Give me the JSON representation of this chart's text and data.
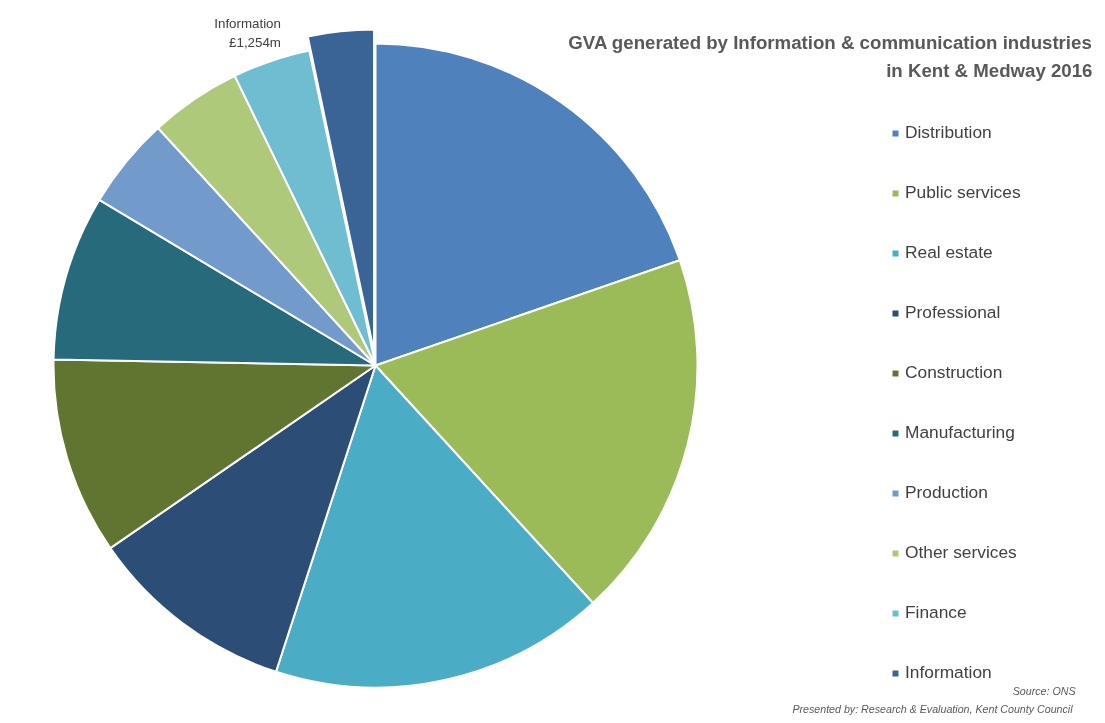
{
  "chart_data": {
    "type": "pie",
    "title": "GVA generated by Information & communication industries\nin Kent & Medway 2016",
    "categories": [
      "Distribution",
      "Public services",
      "Real estate",
      "Professional",
      "Construction",
      "Manufacturing",
      "Production",
      "Other services",
      "Finance",
      "Information"
    ],
    "values": [
      19.7,
      18.5,
      16.8,
      10.4,
      9.9,
      8.3,
      4.6,
      4.6,
      3.9,
      3.3
    ],
    "colors": [
      "#4f81bd",
      "#9bbb59",
      "#4bacc6",
      "#2c4d75",
      "#5f7530",
      "#276a7c",
      "#729aca",
      "#afc97a",
      "#6fbdd1",
      "#3a6496"
    ],
    "legend": "right",
    "annotations": [
      {
        "text": "Information\n£1,254m",
        "x": "Information"
      },
      "Source:  ONS",
      "Presented by:  Research & Evaluation,  Kent County Council"
    ]
  }
}
